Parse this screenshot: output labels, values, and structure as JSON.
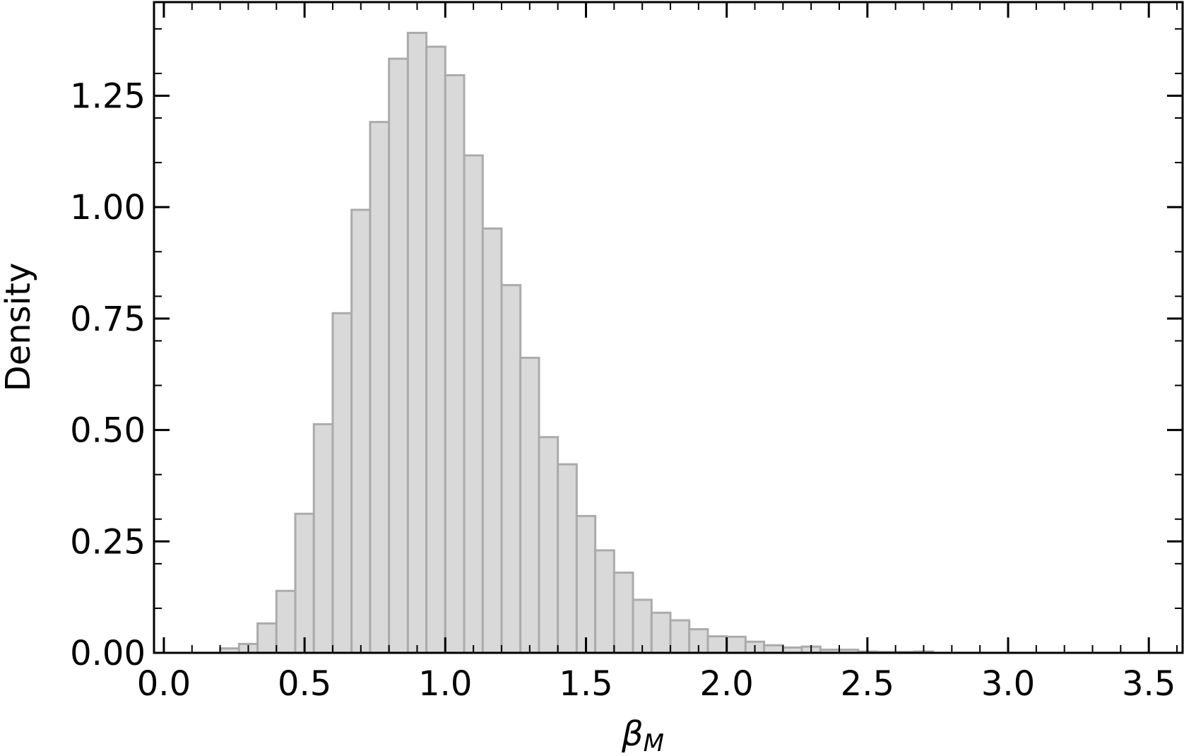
{
  "chart_data": {
    "type": "histogram",
    "xlabel": {
      "symbol": "β",
      "subscript": "M"
    },
    "ylabel": "Density",
    "bins": [
      0.2,
      0.267,
      0.333,
      0.4,
      0.467,
      0.533,
      0.6,
      0.667,
      0.733,
      0.8,
      0.867,
      0.933,
      1.0,
      1.067,
      1.133,
      1.2,
      1.267,
      1.333,
      1.4,
      1.467,
      1.533,
      1.6,
      1.667,
      1.733,
      1.8,
      1.867,
      1.933,
      2.0,
      2.067,
      2.133,
      2.2,
      2.267,
      2.333,
      2.4,
      2.467,
      2.533,
      2.6,
      2.667,
      2.733
    ],
    "values": [
      0.01,
      0.02,
      0.066,
      0.139,
      0.312,
      0.513,
      0.762,
      0.994,
      1.191,
      1.333,
      1.391,
      1.36,
      1.296,
      1.116,
      0.952,
      0.825,
      0.662,
      0.484,
      0.423,
      0.307,
      0.23,
      0.18,
      0.119,
      0.09,
      0.073,
      0.053,
      0.037,
      0.036,
      0.025,
      0.017,
      0.012,
      0.014,
      0.007,
      0.007,
      0.003,
      0.002,
      0.002,
      0.003
    ],
    "color": "#d9d9d9",
    "edgecolor": "#ababab",
    "xlim": [
      -0.035,
      3.62
    ],
    "ylim": [
      0,
      1.46
    ],
    "xticks": [
      {
        "value": 0.0,
        "label": "0.0"
      },
      0.5,
      {
        "value": 1.0,
        "label": "1.0"
      },
      1.5,
      {
        "value": 2.0,
        "label": "2.0"
      },
      2.5,
      {
        "value": 3.0,
        "label": "3.0"
      },
      3.5
    ],
    "yticks": [
      {
        "value": 0.0,
        "label": "0.00"
      },
      0.25,
      {
        "value": 0.5,
        "label": "0.50"
      },
      0.75,
      {
        "value": 1.0,
        "label": "1.00"
      },
      1.25
    ],
    "xminorticks": [
      0.1,
      0.2,
      0.3,
      0.4,
      0.6,
      0.7,
      0.8,
      0.9,
      1.1,
      1.2,
      1.3,
      1.4,
      1.6,
      1.7,
      1.8,
      1.9,
      2.1,
      2.2,
      2.3,
      2.4,
      2.6,
      2.7,
      2.8,
      2.9,
      3.1,
      3.2,
      3.3,
      3.4,
      3.6
    ],
    "yminorticks": [
      0.1,
      0.2,
      0.3,
      0.4,
      0.6,
      0.7,
      0.8,
      0.9,
      1.1,
      1.2,
      1.3,
      1.4
    ],
    "grid": false
  }
}
